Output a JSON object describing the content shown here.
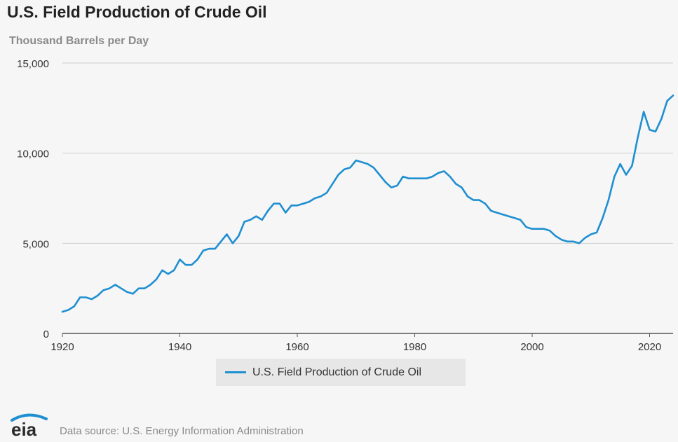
{
  "title": "U.S. Field Production of Crude Oil",
  "units_label": "Thousand Barrels per Day",
  "source": "Data source: U.S. Energy Information Administration",
  "logo_text": "eia",
  "colors": {
    "line": "#1f8fd1",
    "grid": "#cfcfcf",
    "axis": "#555555"
  },
  "chart_data": {
    "type": "line",
    "title": "U.S. Field Production of Crude Oil",
    "ylabel": "Thousand Barrels per Day",
    "xlabel": "",
    "xlim": [
      1920,
      2024
    ],
    "ylim": [
      0,
      15000
    ],
    "x_ticks": [
      1920,
      1940,
      1960,
      1980,
      2000,
      2020
    ],
    "x_tick_labels": [
      "1920",
      "1940",
      "1960",
      "1980",
      "2000",
      "2020"
    ],
    "y_ticks": [
      0,
      5000,
      10000,
      15000
    ],
    "y_tick_labels": [
      "0",
      "5,000",
      "10,000",
      "15,000"
    ],
    "grid": "horizontal",
    "legend": "bottom-center",
    "series": [
      {
        "name": "U.S. Field Production of Crude Oil",
        "x": [
          1920,
          1921,
          1922,
          1923,
          1924,
          1925,
          1926,
          1927,
          1928,
          1929,
          1930,
          1931,
          1932,
          1933,
          1934,
          1935,
          1936,
          1937,
          1938,
          1939,
          1940,
          1941,
          1942,
          1943,
          1944,
          1945,
          1946,
          1947,
          1948,
          1949,
          1950,
          1951,
          1952,
          1953,
          1954,
          1955,
          1956,
          1957,
          1958,
          1959,
          1960,
          1961,
          1962,
          1963,
          1964,
          1965,
          1966,
          1967,
          1968,
          1969,
          1970,
          1971,
          1972,
          1973,
          1974,
          1975,
          1976,
          1977,
          1978,
          1979,
          1980,
          1981,
          1982,
          1983,
          1984,
          1985,
          1986,
          1987,
          1988,
          1989,
          1990,
          1991,
          1992,
          1993,
          1994,
          1995,
          1996,
          1997,
          1998,
          1999,
          2000,
          2001,
          2002,
          2003,
          2004,
          2005,
          2006,
          2007,
          2008,
          2009,
          2010,
          2011,
          2012,
          2013,
          2014,
          2015,
          2016,
          2017,
          2018,
          2019,
          2020,
          2021,
          2022,
          2023,
          2024
        ],
        "values": [
          1200,
          1300,
          1500,
          2000,
          2000,
          1900,
          2100,
          2400,
          2500,
          2700,
          2500,
          2300,
          2200,
          2500,
          2500,
          2700,
          3000,
          3500,
          3300,
          3500,
          4100,
          3800,
          3800,
          4100,
          4600,
          4700,
          4700,
          5100,
          5500,
          5000,
          5400,
          6200,
          6300,
          6500,
          6300,
          6800,
          7200,
          7200,
          6700,
          7100,
          7100,
          7200,
          7300,
          7500,
          7600,
          7800,
          8300,
          8800,
          9100,
          9200,
          9600,
          9500,
          9400,
          9200,
          8800,
          8400,
          8100,
          8200,
          8700,
          8600,
          8600,
          8600,
          8600,
          8700,
          8900,
          9000,
          8700,
          8300,
          8100,
          7600,
          7400,
          7400,
          7200,
          6800,
          6700,
          6600,
          6500,
          6400,
          6300,
          5900,
          5800,
          5800,
          5800,
          5700,
          5400,
          5200,
          5100,
          5100,
          5000,
          5300,
          5500,
          5600,
          6400,
          7400,
          8700,
          9400,
          8800,
          9300,
          10900,
          12300,
          11300,
          11200,
          11900,
          12900,
          13200
        ]
      }
    ]
  }
}
